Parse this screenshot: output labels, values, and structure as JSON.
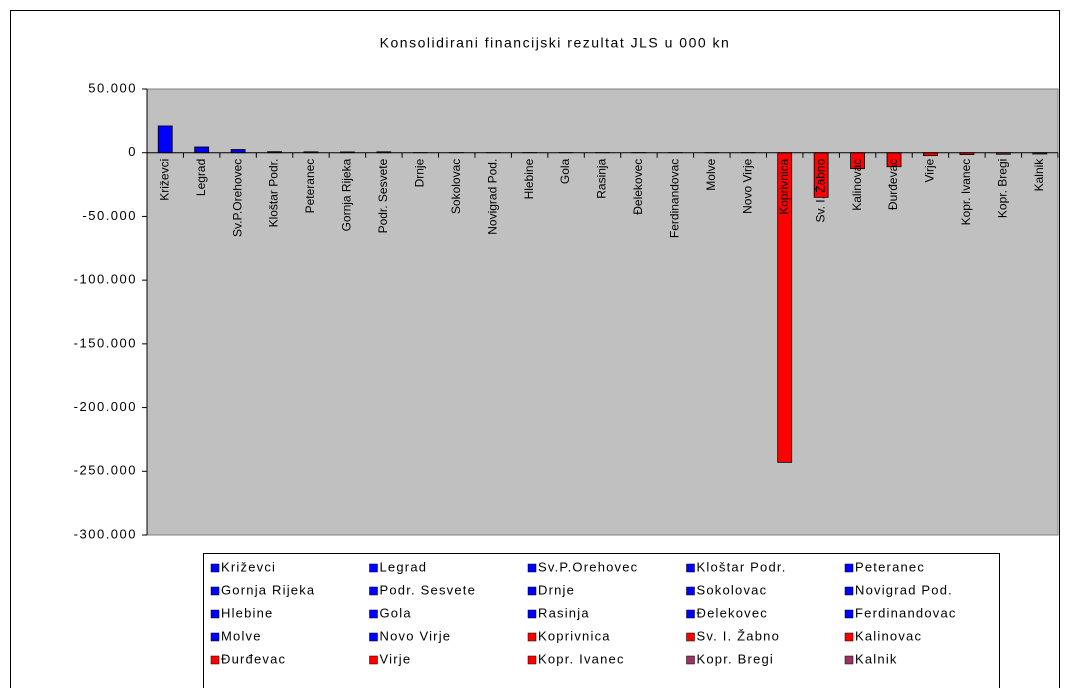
{
  "chart_data": {
    "type": "bar",
    "title": "Konsolidirani financijski rezultat JLS u 000 kn",
    "categories": [
      "Križevci",
      "Legrad",
      "Sv.P.Orehovec",
      "Kloštar Podr.",
      "Peteranec",
      "Gornja Rijeka",
      "Podr. Sesvete",
      "Drnje",
      "Sokolovac",
      "Novigrad Pod.",
      "Hlebine",
      "Gola",
      "Rasinja",
      "Đelekovec",
      "Ferdinandovac",
      "Molve",
      "Novo Virje",
      "Koprivnica",
      "Sv. I. Žabno",
      "Kalinovac",
      "Đurđevac",
      "Virje",
      "Kopr. Ivanec",
      "Kopr. Bregi",
      "Kalnik"
    ],
    "values": [
      21000,
      4500,
      2500,
      800,
      700,
      600,
      700,
      100,
      100,
      100,
      100,
      100,
      100,
      100,
      100,
      100,
      100,
      -243000,
      -35000,
      -12500,
      -11000,
      -2300,
      -1500,
      -1200,
      -1000
    ],
    "colors": [
      "#0000ff",
      "#0000ff",
      "#0000ff",
      "#0000ff",
      "#0000ff",
      "#0000ff",
      "#0000ff",
      "#0000ff",
      "#0000ff",
      "#0000ff",
      "#0000ff",
      "#0000ff",
      "#0000ff",
      "#0000ff",
      "#0000ff",
      "#0000ff",
      "#0000ff",
      "#ff0000",
      "#ff0000",
      "#ff0000",
      "#ff0000",
      "#ff0000",
      "#ff0000",
      "#993366",
      "#993366"
    ],
    "ylim": [
      -300000,
      50000
    ],
    "yticks": [
      {
        "value": 50000,
        "label": "50.000"
      },
      0,
      {
        "value": -50000,
        "label": "-50.000"
      },
      {
        "value": -100000,
        "label": "-100.000"
      },
      {
        "value": -150000,
        "label": "-150.000"
      },
      {
        "value": -200000,
        "label": "-200.000"
      },
      {
        "value": -250000,
        "label": "-250.000"
      },
      {
        "value": -300000,
        "label": "-300.000"
      }
    ],
    "grid": false,
    "legend": "bottom"
  }
}
